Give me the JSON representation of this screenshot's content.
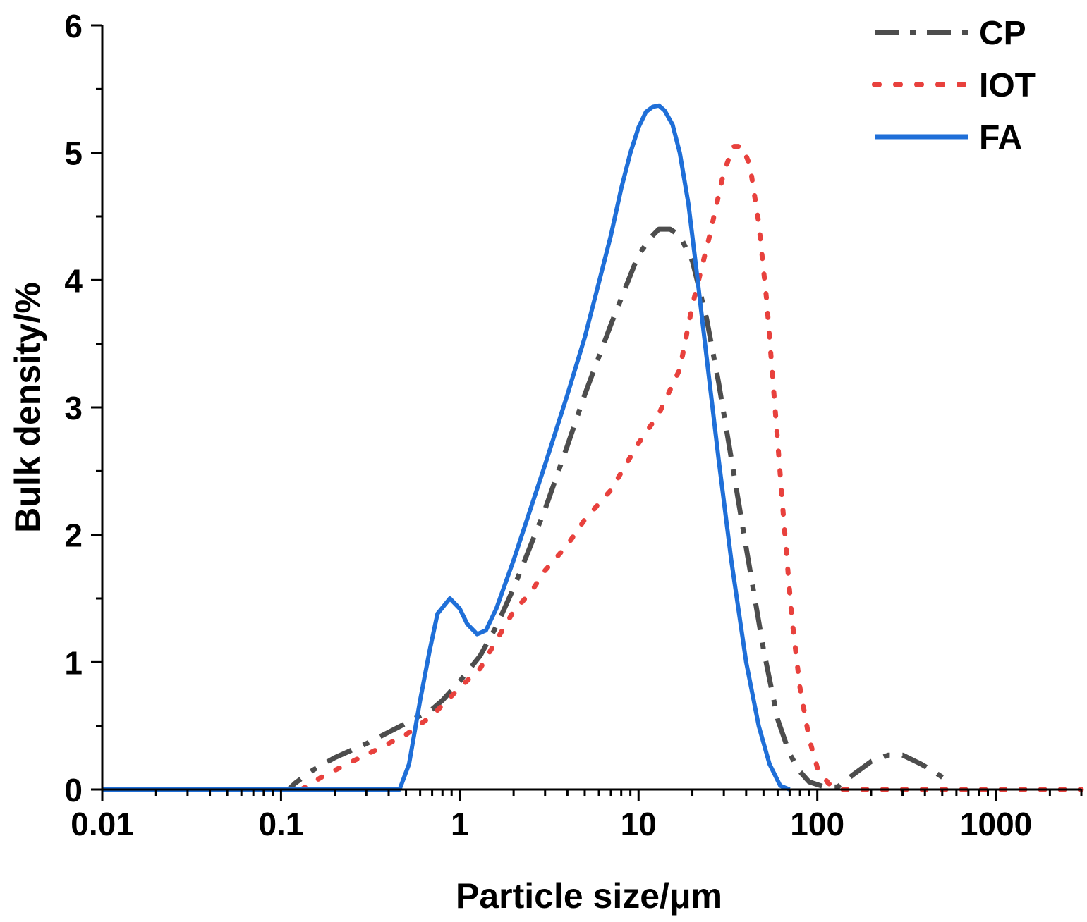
{
  "chart_data": {
    "type": "line",
    "title": "",
    "xlabel": "Particle size/μm",
    "ylabel": "Bulk density/%",
    "xscale": "log",
    "xlim": [
      0.01,
      3000
    ],
    "ylim": [
      0,
      6
    ],
    "x_ticks": [
      {
        "value": 0.01,
        "label": "0.01"
      },
      {
        "value": 0.1,
        "label": "0.1"
      },
      {
        "value": 1,
        "label": "1"
      },
      {
        "value": 10,
        "label": "10"
      },
      {
        "value": 100,
        "label": "100"
      },
      {
        "value": 1000,
        "label": "1000"
      }
    ],
    "y_ticks": [
      {
        "value": 0,
        "label": "0"
      },
      {
        "value": 1,
        "label": "1"
      },
      {
        "value": 2,
        "label": "2"
      },
      {
        "value": 3,
        "label": "3"
      },
      {
        "value": 4,
        "label": "4"
      },
      {
        "value": 5,
        "label": "5"
      },
      {
        "value": 6,
        "label": "6"
      }
    ],
    "grid": false,
    "legend_position": "top-right",
    "series": [
      {
        "name": "CP",
        "color": "#4d4d4d",
        "style": "dash-dot",
        "points": [
          [
            0.01,
            0
          ],
          [
            0.05,
            0
          ],
          [
            0.11,
            0
          ],
          [
            0.12,
            0.05
          ],
          [
            0.15,
            0.15
          ],
          [
            0.2,
            0.25
          ],
          [
            0.3,
            0.36
          ],
          [
            0.4,
            0.45
          ],
          [
            0.5,
            0.52
          ],
          [
            0.6,
            0.58
          ],
          [
            0.7,
            0.63
          ],
          [
            0.8,
            0.7
          ],
          [
            1.0,
            0.85
          ],
          [
            1.3,
            1.05
          ],
          [
            1.6,
            1.28
          ],
          [
            2.0,
            1.58
          ],
          [
            3.0,
            2.2
          ],
          [
            4.0,
            2.7
          ],
          [
            5.0,
            3.1
          ],
          [
            7.0,
            3.65
          ],
          [
            8.5,
            3.95
          ],
          [
            10,
            4.2
          ],
          [
            12,
            4.35
          ],
          [
            13,
            4.4
          ],
          [
            15,
            4.4
          ],
          [
            17,
            4.35
          ],
          [
            20,
            4.15
          ],
          [
            24,
            3.7
          ],
          [
            28,
            3.2
          ],
          [
            33,
            2.6
          ],
          [
            40,
            1.9
          ],
          [
            50,
            1.1
          ],
          [
            60,
            0.55
          ],
          [
            70,
            0.28
          ],
          [
            80,
            0.14
          ],
          [
            90,
            0.06
          ],
          [
            110,
            0.02
          ],
          [
            130,
            0.02
          ],
          [
            160,
            0.12
          ],
          [
            200,
            0.22
          ],
          [
            250,
            0.27
          ],
          [
            300,
            0.27
          ],
          [
            380,
            0.2
          ],
          [
            450,
            0.14
          ],
          [
            520,
            0.08
          ]
        ]
      },
      {
        "name": "IOT",
        "color": "#e8413d",
        "style": "dotted",
        "points": [
          [
            0.13,
            0
          ],
          [
            0.17,
            0.1
          ],
          [
            0.25,
            0.22
          ],
          [
            0.35,
            0.32
          ],
          [
            0.5,
            0.43
          ],
          [
            0.7,
            0.58
          ],
          [
            1.0,
            0.8
          ],
          [
            1.3,
            0.95
          ],
          [
            1.6,
            1.17
          ],
          [
            2.0,
            1.4
          ],
          [
            2.5,
            1.55
          ],
          [
            3.0,
            1.72
          ],
          [
            4.0,
            1.92
          ],
          [
            5.0,
            2.12
          ],
          [
            7.0,
            2.35
          ],
          [
            10,
            2.72
          ],
          [
            13,
            2.95
          ],
          [
            17,
            3.3
          ],
          [
            20,
            3.8
          ],
          [
            25,
            4.35
          ],
          [
            30,
            4.85
          ],
          [
            34,
            5.05
          ],
          [
            38,
            5.05
          ],
          [
            42,
            4.9
          ],
          [
            47,
            4.45
          ],
          [
            52,
            3.85
          ],
          [
            58,
            3.0
          ],
          [
            65,
            2.1
          ],
          [
            72,
            1.35
          ],
          [
            80,
            0.8
          ],
          [
            90,
            0.4
          ],
          [
            100,
            0.17
          ],
          [
            115,
            0.05
          ],
          [
            130,
            0.0
          ],
          [
            200,
            0.0
          ],
          [
            500,
            0.0
          ],
          [
            1000,
            0.0
          ],
          [
            2000,
            0.0
          ],
          [
            3000,
            0.0
          ]
        ]
      },
      {
        "name": "FA",
        "color": "#1f6fd8",
        "style": "solid",
        "points": [
          [
            0.01,
            0
          ],
          [
            0.1,
            0
          ],
          [
            0.3,
            0
          ],
          [
            0.46,
            0
          ],
          [
            0.52,
            0.2
          ],
          [
            0.6,
            0.7
          ],
          [
            0.68,
            1.1
          ],
          [
            0.75,
            1.38
          ],
          [
            0.88,
            1.5
          ],
          [
            1.0,
            1.42
          ],
          [
            1.1,
            1.3
          ],
          [
            1.25,
            1.22
          ],
          [
            1.4,
            1.25
          ],
          [
            1.6,
            1.42
          ],
          [
            2.0,
            1.8
          ],
          [
            3.0,
            2.55
          ],
          [
            4.0,
            3.1
          ],
          [
            5.0,
            3.55
          ],
          [
            6.0,
            3.98
          ],
          [
            7.0,
            4.35
          ],
          [
            8.0,
            4.72
          ],
          [
            9.0,
            5.0
          ],
          [
            10,
            5.2
          ],
          [
            11,
            5.32
          ],
          [
            12,
            5.36
          ],
          [
            13,
            5.37
          ],
          [
            14,
            5.33
          ],
          [
            15.5,
            5.22
          ],
          [
            17,
            5.0
          ],
          [
            19,
            4.6
          ],
          [
            21,
            4.1
          ],
          [
            24,
            3.4
          ],
          [
            28,
            2.6
          ],
          [
            33,
            1.8
          ],
          [
            40,
            1.0
          ],
          [
            47,
            0.5
          ],
          [
            54,
            0.2
          ],
          [
            62,
            0.03
          ],
          [
            70,
            0.0
          ]
        ]
      }
    ]
  }
}
